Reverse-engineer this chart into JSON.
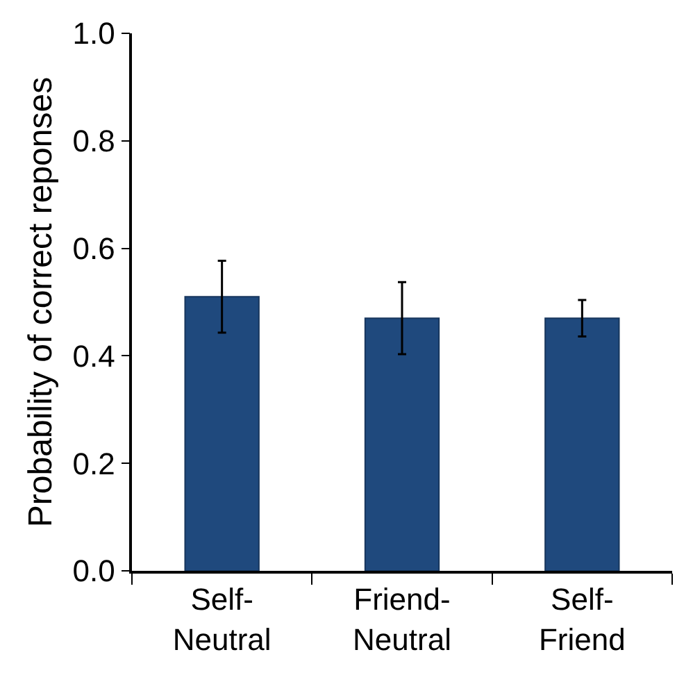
{
  "chart_data": {
    "type": "bar",
    "ylabel": "Probability of correct reponses",
    "categories": [
      "Self-\nNeutral",
      "Friend-\nNeutral",
      "Self-\nFriend"
    ],
    "values": [
      0.51,
      0.47,
      0.47
    ],
    "errors": [
      0.067,
      0.067,
      0.034
    ],
    "ylim": [
      0,
      1.0
    ],
    "yticks": [
      {
        "value": 0,
        "label": "0.0"
      },
      0.2,
      0.4,
      0.6,
      0.8,
      {
        "value": 1.0,
        "label": "1.0"
      }
    ],
    "color": "#1f497d"
  }
}
